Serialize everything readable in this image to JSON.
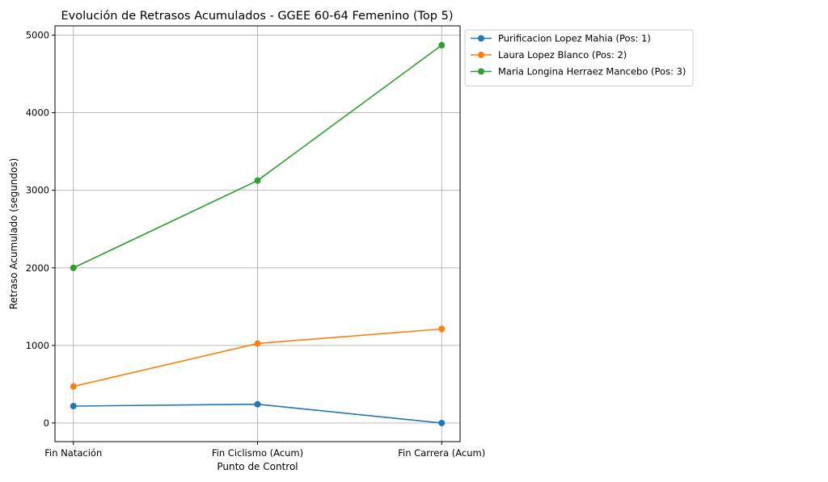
{
  "chart_data": {
    "type": "line",
    "title": "Evolución de Retrasos Acumulados - GGEE 60-64 Femenino (Top 5)",
    "xlabel": "Punto de Control",
    "ylabel": "Retraso Acumulado (segundos)",
    "categories": [
      "Fin Natación",
      "Fin Ciclismo (Acum)",
      "Fin Carrera (Acum)"
    ],
    "ylim": [
      -240,
      5120
    ],
    "yticks": [
      0,
      1000,
      2000,
      3000,
      4000,
      5000
    ],
    "grid": true,
    "legend_position": "outside top-right",
    "series": [
      {
        "name": "Purificacion Lopez Mahia (Pos: 1)",
        "color": "#1f77b4",
        "values": [
          218,
          242,
          0
        ]
      },
      {
        "name": "Laura Lopez Blanco (Pos: 2)",
        "color": "#ff7f0e",
        "values": [
          472,
          1025,
          1212
        ]
      },
      {
        "name": "Maria Longina Herraez Mancebo (Pos: 3)",
        "color": "#2ca02c",
        "values": [
          2000,
          3125,
          4870
        ]
      }
    ]
  }
}
